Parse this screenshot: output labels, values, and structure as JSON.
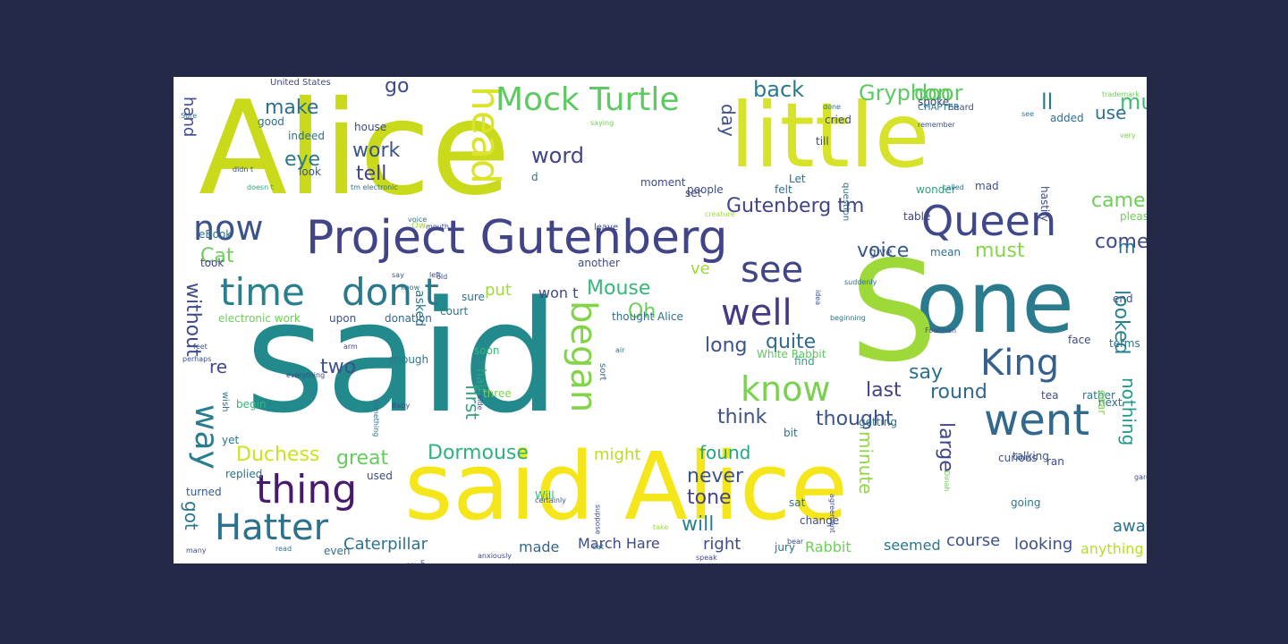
{
  "colors": {
    "page_background": "#232946",
    "canvas_background": "#ffffff",
    "palette": [
      "#440154",
      "#46327e",
      "#365c8d",
      "#277f8e",
      "#1fa187",
      "#4ac16d",
      "#a0da39",
      "#fde725"
    ]
  },
  "words": [
    {
      "text": "Alice",
      "color": "#c8da1a"
    },
    {
      "text": "said",
      "color": "#22898c"
    },
    {
      "text": "little",
      "color": "#d6e32a"
    },
    {
      "text": "said Alice",
      "color": "#f5e61c"
    },
    {
      "text": "one",
      "color": "#2a7b8e"
    },
    {
      "text": "S",
      "color": "#9ed93a"
    },
    {
      "text": "Project Gutenberg",
      "color": "#414487"
    },
    {
      "text": "head",
      "color": "#dbe32a"
    },
    {
      "text": "Mock Turtle",
      "color": "#5ec962"
    },
    {
      "text": "Queen",
      "color": "#3f4889"
    },
    {
      "text": "time",
      "color": "#27808e"
    },
    {
      "text": "don t",
      "color": "#2a788e"
    },
    {
      "text": "now",
      "color": "#3b528b"
    },
    {
      "text": "see",
      "color": "#404588"
    },
    {
      "text": "well",
      "color": "#443983"
    },
    {
      "text": "know",
      "color": "#7ad151"
    },
    {
      "text": "King",
      "color": "#355f8d"
    },
    {
      "text": "went",
      "color": "#31688e"
    },
    {
      "text": "began",
      "color": "#84d44b"
    },
    {
      "text": "thing",
      "color": "#481a6c"
    },
    {
      "text": "Hatter",
      "color": "#2c728e"
    },
    {
      "text": "way",
      "color": "#287d8e"
    },
    {
      "text": "Gryphon",
      "color": "#5ec962"
    },
    {
      "text": "door",
      "color": "#5ec962"
    },
    {
      "text": "back",
      "color": "#2a788e"
    },
    {
      "text": "go",
      "color": "#3e4a89"
    },
    {
      "text": "make",
      "color": "#2d708e"
    },
    {
      "text": "work",
      "color": "#3b528b"
    },
    {
      "text": "tell",
      "color": "#414487"
    },
    {
      "text": "eye",
      "color": "#2a788e"
    },
    {
      "text": "word",
      "color": "#414487"
    },
    {
      "text": "hand",
      "color": "#3e4a89"
    },
    {
      "text": "much",
      "color": "#3fbc73"
    },
    {
      "text": "ll",
      "color": "#2a788e"
    },
    {
      "text": "use",
      "color": "#2d708e"
    },
    {
      "text": "day",
      "color": "#3b528b"
    },
    {
      "text": "Gutenberg tm",
      "color": "#404588"
    },
    {
      "text": "came",
      "color": "#6ece58"
    },
    {
      "text": "come",
      "color": "#3e4a89"
    },
    {
      "text": "must",
      "color": "#86d549"
    },
    {
      "text": "voice",
      "color": "#38588c"
    },
    {
      "text": "Cat",
      "color": "#6ece58"
    },
    {
      "text": "Mouse",
      "color": "#35b779"
    },
    {
      "text": "Oh",
      "color": "#6ece58"
    },
    {
      "text": "put",
      "color": "#a2da37"
    },
    {
      "text": "won t",
      "color": "#3e4a89"
    },
    {
      "text": "without",
      "color": "#3e4a89"
    },
    {
      "text": "re",
      "color": "#3e4a89"
    },
    {
      "text": "two",
      "color": "#3b528b"
    },
    {
      "text": "long",
      "color": "#3b528b"
    },
    {
      "text": "quite",
      "color": "#306a8e"
    },
    {
      "text": "say",
      "color": "#2d708e"
    },
    {
      "text": "looked",
      "color": "#27808e"
    },
    {
      "text": "last",
      "color": "#414487"
    },
    {
      "text": "round",
      "color": "#31688e"
    },
    {
      "text": "think",
      "color": "#3b528b"
    },
    {
      "text": "thought",
      "color": "#3b528b"
    },
    {
      "text": "first",
      "color": "#2ea37c"
    },
    {
      "text": "Duchess",
      "color": "#cde11d"
    },
    {
      "text": "great",
      "color": "#65cb5e"
    },
    {
      "text": "Dormouse",
      "color": "#2db27d"
    },
    {
      "text": "might",
      "color": "#b8de29"
    },
    {
      "text": "found",
      "color": "#21a685"
    },
    {
      "text": "never",
      "color": "#3b528b"
    },
    {
      "text": "tone",
      "color": "#404588"
    },
    {
      "text": "will",
      "color": "#26828e"
    },
    {
      "text": "right",
      "color": "#3e4a89"
    },
    {
      "text": "Caterpillar",
      "color": "#2c728e"
    },
    {
      "text": "made",
      "color": "#31688e"
    },
    {
      "text": "March Hare",
      "color": "#3e4a89"
    },
    {
      "text": "Rabbit",
      "color": "#6ece58"
    },
    {
      "text": "seemed",
      "color": "#2a788e"
    },
    {
      "text": "course",
      "color": "#3b528b"
    },
    {
      "text": "looking",
      "color": "#3b528b"
    },
    {
      "text": "anything",
      "color": "#b5de2b"
    },
    {
      "text": "away",
      "color": "#2c728e"
    },
    {
      "text": "large",
      "color": "#404588"
    },
    {
      "text": "minute",
      "color": "#8fd744"
    },
    {
      "text": "nothing",
      "color": "#1e9b8a"
    },
    {
      "text": "got",
      "color": "#2a788e"
    },
    {
      "text": "m",
      "color": "#2c728e"
    },
    {
      "text": "ve",
      "color": "#a0da39"
    },
    {
      "text": "electronic work",
      "color": "#6ece58"
    },
    {
      "text": "thought Alice",
      "color": "#2d708e"
    },
    {
      "text": "upon",
      "color": "#3b528b"
    },
    {
      "text": "donation",
      "color": "#31688e"
    },
    {
      "text": "court",
      "color": "#2a788e"
    },
    {
      "text": "asked",
      "color": "#2a788e"
    },
    {
      "text": "sure",
      "color": "#2d708e"
    },
    {
      "text": "soon",
      "color": "#35b779"
    },
    {
      "text": "half",
      "color": "#2ea37c"
    },
    {
      "text": "three",
      "color": "#7ad151"
    },
    {
      "text": "enough",
      "color": "#2a788e"
    },
    {
      "text": "begin",
      "color": "#35b779"
    },
    {
      "text": "yet",
      "color": "#2c728e"
    },
    {
      "text": "replied",
      "color": "#2c728e"
    },
    {
      "text": "turned",
      "color": "#38588c"
    },
    {
      "text": "used",
      "color": "#3e4a89"
    },
    {
      "text": "Will",
      "color": "#35b779"
    },
    {
      "text": "even",
      "color": "#2d708e"
    },
    {
      "text": "jury",
      "color": "#2d708e"
    },
    {
      "text": "sat",
      "color": "#2c728e"
    },
    {
      "text": "change",
      "color": "#3e4a89"
    },
    {
      "text": "going",
      "color": "#2a788e"
    },
    {
      "text": "talking",
      "color": "#3b528b"
    },
    {
      "text": "curious",
      "color": "#3b528b"
    },
    {
      "text": "ran",
      "color": "#3e4a89"
    },
    {
      "text": "getting",
      "color": "#2d708e"
    },
    {
      "text": "bit",
      "color": "#2c728e"
    },
    {
      "text": "tea",
      "color": "#3e4a89"
    },
    {
      "text": "rather",
      "color": "#2a788e"
    },
    {
      "text": "next",
      "color": "#2d708e"
    },
    {
      "text": "dear",
      "color": "#7ad151"
    },
    {
      "text": "White Rabbit",
      "color": "#5ec962"
    },
    {
      "text": "find",
      "color": "#2ea37c"
    },
    {
      "text": "face",
      "color": "#3e4a89"
    },
    {
      "text": "terms",
      "color": "#2d708e"
    },
    {
      "text": "end",
      "color": "#3b528b"
    },
    {
      "text": "please",
      "color": "#6ece58"
    },
    {
      "text": "another",
      "color": "#3e4a89"
    },
    {
      "text": "took",
      "color": "#404588"
    },
    {
      "text": "eBook",
      "color": "#2c728e"
    },
    {
      "text": "mean",
      "color": "#2d708e"
    },
    {
      "text": "give",
      "color": "#3b528b"
    },
    {
      "text": "moment",
      "color": "#3e4a89"
    },
    {
      "text": "people",
      "color": "#3e4a89"
    },
    {
      "text": "felt",
      "color": "#2d708e"
    },
    {
      "text": "table",
      "color": "#404588"
    },
    {
      "text": "wonder",
      "color": "#2ea37c"
    },
    {
      "text": "mad",
      "color": "#3b528b"
    },
    {
      "text": "hastily",
      "color": "#3e4a89"
    },
    {
      "text": "question",
      "color": "#2c728e"
    },
    {
      "text": "till",
      "color": "#3e4a89"
    },
    {
      "text": "cried",
      "color": "#3e4a89"
    },
    {
      "text": "added",
      "color": "#2d708e"
    },
    {
      "text": "spoke",
      "color": "#414487"
    },
    {
      "text": "CHAPTER",
      "color": "#2a788e"
    },
    {
      "text": "heard",
      "color": "#3b528b"
    },
    {
      "text": "good",
      "color": "#2c728e"
    },
    {
      "text": "house",
      "color": "#3e4a89"
    },
    {
      "text": "indeed",
      "color": "#2d708e"
    },
    {
      "text": "look",
      "color": "#3b528b"
    },
    {
      "text": "d",
      "color": "#2c728e"
    },
    {
      "text": "Let",
      "color": "#2d708e"
    },
    {
      "text": "set",
      "color": "#404588"
    },
    {
      "text": "United States",
      "color": "#3e4a89"
    },
    {
      "text": "tm electronic",
      "color": "#2c728e"
    },
    {
      "text": "perhaps",
      "color": "#3b528b"
    },
    {
      "text": "wish",
      "color": "#2c728e"
    },
    {
      "text": "something",
      "color": "#2d708e"
    },
    {
      "text": "side",
      "color": "#3e4a89"
    },
    {
      "text": "sort",
      "color": "#2d708e"
    },
    {
      "text": "air",
      "color": "#2c728e"
    },
    {
      "text": "arm",
      "color": "#404588"
    },
    {
      "text": "leave",
      "color": "#3e4a89"
    },
    {
      "text": "called",
      "color": "#2c728e"
    },
    {
      "text": "didn t",
      "color": "#3b528b"
    },
    {
      "text": "doesn t",
      "color": "#2ea37c"
    },
    {
      "text": "everything",
      "color": "#3e4a89"
    },
    {
      "text": "idea",
      "color": "#3b528b"
    },
    {
      "text": "beginning",
      "color": "#2c728e"
    },
    {
      "text": "Footman",
      "color": "#3e4a89"
    },
    {
      "text": "suddenly",
      "color": "#2c728e"
    },
    {
      "text": "saying",
      "color": "#6ece58"
    },
    {
      "text": "trying",
      "color": "#3e4a89"
    },
    {
      "text": "certainly",
      "color": "#3b528b"
    },
    {
      "text": "speak",
      "color": "#404588"
    },
    {
      "text": "eat",
      "color": "#2d708e"
    },
    {
      "text": "suppose",
      "color": "#3e4a89"
    },
    {
      "text": "take",
      "color": "#a0da39"
    },
    {
      "text": "agreement",
      "color": "#3e4a89"
    },
    {
      "text": "Dinah",
      "color": "#6ece58"
    },
    {
      "text": "garden",
      "color": "#3e4a89"
    },
    {
      "text": "remember",
      "color": "#3b528b"
    },
    {
      "text": "very",
      "color": "#7ad151"
    },
    {
      "text": "trademark",
      "color": "#6ece58"
    },
    {
      "text": "many",
      "color": "#3e4a89"
    },
    {
      "text": "read",
      "color": "#2c728e"
    },
    {
      "text": "anxiously",
      "color": "#3e4a89"
    },
    {
      "text": "creature",
      "color": "#a0da39"
    },
    {
      "text": "feet",
      "color": "#3b528b"
    },
    {
      "text": "Baby",
      "color": "#3e4a89"
    },
    {
      "text": "Sure",
      "color": "#2d708e"
    },
    {
      "text": "see",
      "color": "#2c728e"
    },
    {
      "text": "bear",
      "color": "#3e4a89"
    },
    {
      "text": "done",
      "color": "#2c728e"
    },
    {
      "text": "mouth",
      "color": "#3e4a89"
    },
    {
      "text": "gave",
      "color": "#2c728e"
    },
    {
      "text": "left",
      "color": "#3e4a89"
    },
    {
      "text": "say",
      "color": "#3b528b"
    },
    {
      "text": "know",
      "color": "#2d708e"
    },
    {
      "text": "old",
      "color": "#3e4a89"
    },
    {
      "text": "voice",
      "color": "#2c728e"
    },
    {
      "text": "Ow",
      "color": "#a0da39"
    },
    {
      "text": "S",
      "color": "#3e4a89"
    }
  ]
}
